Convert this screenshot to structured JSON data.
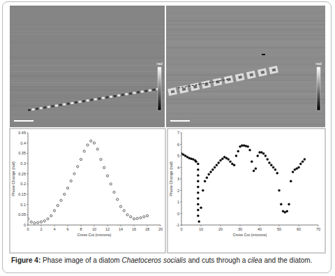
{
  "chart_data": [
    {
      "type": "scatter",
      "x_label": "Cross Cut (microns)",
      "y_label": "Phase Change (rad)",
      "marker": "open-circle",
      "color": "#000000",
      "grid": false,
      "xlim": [
        0,
        20
      ],
      "xticks": [
        0,
        2,
        4,
        6,
        8,
        10,
        12,
        14,
        16,
        18,
        20
      ],
      "ylim": [
        0,
        0.45
      ],
      "yticks": [
        0,
        0.05,
        0.1,
        0.15,
        0.2,
        0.25,
        0.3,
        0.35,
        0.4,
        0.45
      ],
      "x": [
        0,
        0.5,
        1,
        1.5,
        2,
        2.5,
        3,
        3.5,
        4,
        4.5,
        5,
        5.5,
        6,
        6.5,
        7,
        7.5,
        8,
        8.5,
        9,
        9.5,
        10,
        10.5,
        11,
        11.5,
        12,
        12.5,
        13,
        13.5,
        14,
        14.5,
        15,
        15.5,
        16,
        16.5,
        17,
        17.5,
        18
      ],
      "values": [
        0.03,
        0.015,
        0.01,
        0.012,
        0.015,
        0.02,
        0.03,
        0.045,
        0.07,
        0.095,
        0.12,
        0.15,
        0.18,
        0.215,
        0.25,
        0.285,
        0.32,
        0.36,
        0.39,
        0.41,
        0.4,
        0.37,
        0.32,
        0.28,
        0.24,
        0.2,
        0.16,
        0.125,
        0.09,
        0.07,
        0.05,
        0.04,
        0.03,
        0.032,
        0.035,
        0.04,
        0.045
      ]
    },
    {
      "type": "scatter",
      "x_label": "Cross Cut (microns)",
      "y_label": "Phase Change (rad)",
      "marker": "circle",
      "color": "#000000",
      "grid": false,
      "xlim": [
        0,
        70
      ],
      "xticks": [
        0,
        10,
        20,
        30,
        40,
        50,
        60,
        70
      ],
      "ylim": [
        -1,
        7
      ],
      "yticks": [
        -1,
        0,
        1,
        2,
        3,
        4,
        5,
        6,
        7
      ],
      "x": [
        0,
        1,
        2,
        3,
        4,
        5,
        6,
        7,
        7.5,
        8.5,
        8.5,
        8.5,
        8.5,
        8.5,
        8.5,
        8.5,
        8.5,
        8.5,
        8.5,
        9,
        10,
        11,
        12,
        13,
        14,
        15,
        16,
        17,
        18,
        19,
        20,
        21,
        22,
        23,
        24,
        25,
        26,
        27,
        28,
        29,
        30,
        31,
        32,
        33,
        34,
        35,
        36,
        37,
        38,
        39,
        40,
        41,
        42,
        43,
        44,
        45,
        46,
        47,
        48,
        49,
        50,
        51,
        52,
        53,
        54,
        55,
        56,
        57,
        58,
        59,
        60,
        61,
        62,
        63
      ],
      "values": [
        5.2,
        5.1,
        5.0,
        4.9,
        4.8,
        4.75,
        4.7,
        4.6,
        4.5,
        4.3,
        3.8,
        3.3,
        2.8,
        2.3,
        1.8,
        1.3,
        0.8,
        0.3,
        -0.2,
        -0.7,
        0.5,
        2.0,
        2.8,
        3.1,
        3.4,
        3.6,
        3.8,
        4.0,
        4.2,
        4.4,
        4.6,
        4.75,
        4.9,
        4.8,
        4.7,
        4.5,
        4.3,
        4.2,
        5.0,
        5.4,
        5.8,
        5.9,
        5.9,
        5.85,
        5.8,
        5.5,
        4.5,
        3.7,
        3.9,
        5.0,
        5.3,
        5.3,
        5.2,
        5.0,
        4.7,
        4.4,
        4.2,
        4.0,
        3.8,
        3.5,
        2.0,
        0.8,
        0.2,
        0.1,
        0.2,
        0.8,
        2.8,
        3.6,
        3.8,
        3.9,
        4.0,
        4.3,
        4.5,
        4.7
      ]
    }
  ],
  "images": [
    {
      "colorbar_label": "rad"
    },
    {
      "colorbar_label": "rad"
    }
  ],
  "figure": {
    "caption": {
      "label": "Figure 4:",
      "parts": [
        {
          "text": " Phase image of a diatom ",
          "italic": false
        },
        {
          "text": "Chaetoceros socialis",
          "italic": true
        },
        {
          "text": " and cuts through a ",
          "italic": false
        },
        {
          "text": "cilea",
          "italic": true
        },
        {
          "text": " and the diatom.",
          "italic": false
        }
      ]
    }
  }
}
